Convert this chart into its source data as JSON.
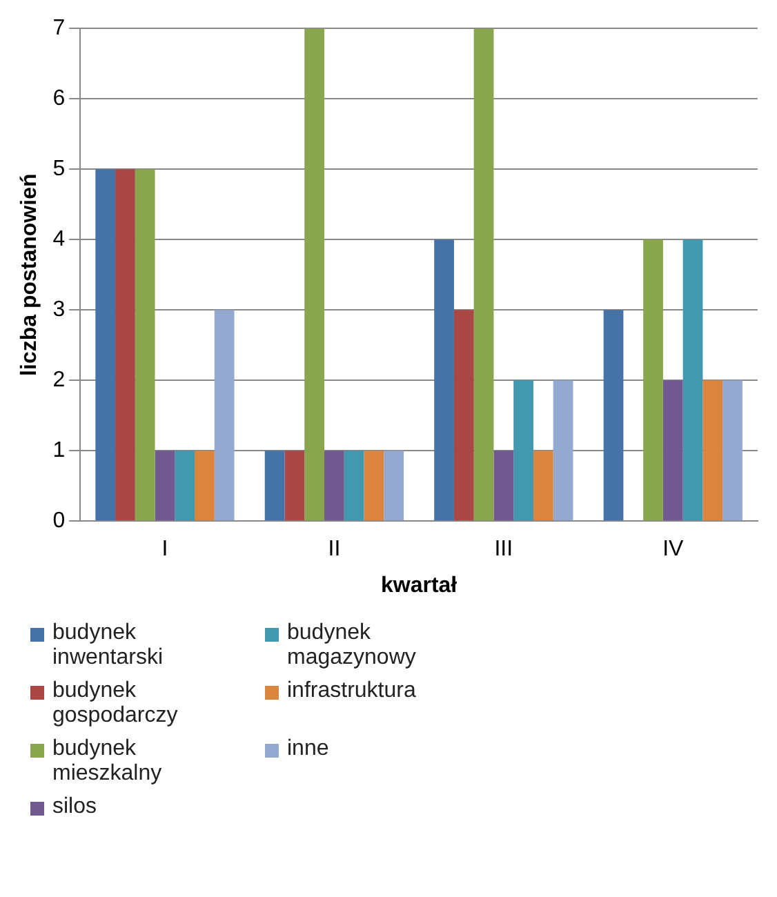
{
  "chart_data": {
    "type": "bar",
    "xlabel": "kwartał",
    "ylabel": "liczba postanowień",
    "categories": [
      "I",
      "II",
      "III",
      "IV"
    ],
    "series": [
      {
        "name": "budynek inwentarski",
        "color": "#4572a7",
        "values": [
          5,
          1,
          4,
          3
        ]
      },
      {
        "name": "budynek gospodarczy",
        "color": "#aa4643",
        "values": [
          5,
          1,
          3,
          0
        ]
      },
      {
        "name": "budynek mieszkalny",
        "color": "#89a54e",
        "values": [
          5,
          7,
          7,
          4
        ]
      },
      {
        "name": "silos",
        "color": "#71588f",
        "values": [
          1,
          1,
          1,
          2
        ]
      },
      {
        "name": "budynek magazynowy",
        "color": "#4198af",
        "values": [
          1,
          1,
          2,
          4
        ]
      },
      {
        "name": "infrastruktura",
        "color": "#db843d",
        "values": [
          1,
          1,
          1,
          2
        ]
      },
      {
        "name": "inne",
        "color": "#93a9cf",
        "values": [
          3,
          1,
          2,
          2
        ]
      }
    ],
    "ylim": [
      0,
      7
    ],
    "yticks": [
      0,
      1,
      2,
      3,
      4,
      5,
      6,
      7
    ],
    "grid": "y",
    "legend": "bottom"
  }
}
